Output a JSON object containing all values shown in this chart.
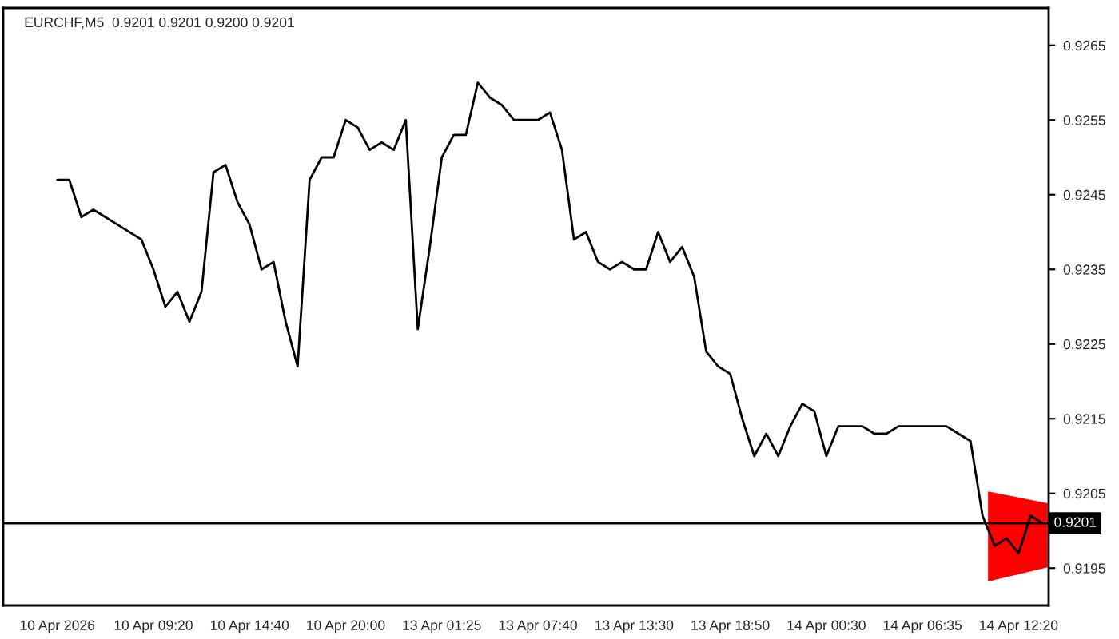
{
  "chart_data": {
    "type": "line",
    "title": "EURCHF,M5  0.9201 0.9201 0.9200 0.9201",
    "categories": [
      "10 Apr 2026",
      null,
      null,
      null,
      null,
      null,
      null,
      null,
      "10 Apr 09:20",
      null,
      null,
      null,
      null,
      null,
      null,
      null,
      "10 Apr 14:40",
      null,
      null,
      null,
      null,
      null,
      null,
      null,
      "10 Apr 20:00",
      null,
      null,
      null,
      null,
      null,
      null,
      null,
      "13 Apr 01:25",
      null,
      null,
      null,
      null,
      null,
      null,
      null,
      "13 Apr 07:40",
      null,
      null,
      null,
      null,
      null,
      null,
      null,
      "13 Apr 13:30",
      null,
      null,
      null,
      null,
      null,
      null,
      null,
      "13 Apr 18:50",
      null,
      null,
      null,
      null,
      null,
      null,
      null,
      "14 Apr 00:30",
      null,
      null,
      null,
      null,
      null,
      null,
      null,
      "14 Apr 06:35",
      null,
      null,
      null,
      null,
      null,
      null,
      null,
      "14 Apr 12:20",
      null,
      null
    ],
    "series": [
      {
        "color": "#000000",
        "values": [
          0.9247,
          0.9247,
          0.9242,
          0.9243,
          0.9242,
          0.9241,
          0.924,
          0.9239,
          0.9235,
          0.923,
          0.9232,
          0.9228,
          0.9232,
          0.9248,
          0.9249,
          0.9244,
          0.9241,
          0.9235,
          0.9236,
          0.9228,
          0.9222,
          0.9247,
          0.925,
          0.925,
          0.9255,
          0.9254,
          0.9251,
          0.9252,
          0.9251,
          0.9255,
          0.9227,
          0.9238,
          0.925,
          0.9253,
          0.9253,
          0.926,
          0.9258,
          0.9257,
          0.9255,
          0.9255,
          0.9255,
          0.9256,
          0.9251,
          0.9239,
          0.924,
          0.9236,
          0.9235,
          0.9236,
          0.9235,
          0.9235,
          0.924,
          0.9236,
          0.9238,
          0.9234,
          0.9224,
          0.9222,
          0.9221,
          0.9215,
          0.921,
          0.9213,
          0.921,
          0.9214,
          0.9217,
          0.9216,
          0.921,
          0.9214,
          0.9214,
          0.9214,
          0.9213,
          0.9213,
          0.9214,
          0.9214,
          0.9214,
          0.9214,
          0.9214,
          0.9213,
          0.9212,
          0.9202,
          0.9198,
          0.9199,
          0.9197,
          0.9202,
          0.9201
        ]
      }
    ],
    "ylim": [
      0.919,
      0.927
    ],
    "yticks": [
      0.9195,
      0.9205,
      0.9215,
      0.9225,
      0.9235,
      0.9245,
      0.9255,
      0.9265
    ],
    "ref_lines": [
      {
        "axis": "y",
        "value": 0.9201,
        "label": "0.9201",
        "color": "#000000"
      }
    ]
  }
}
